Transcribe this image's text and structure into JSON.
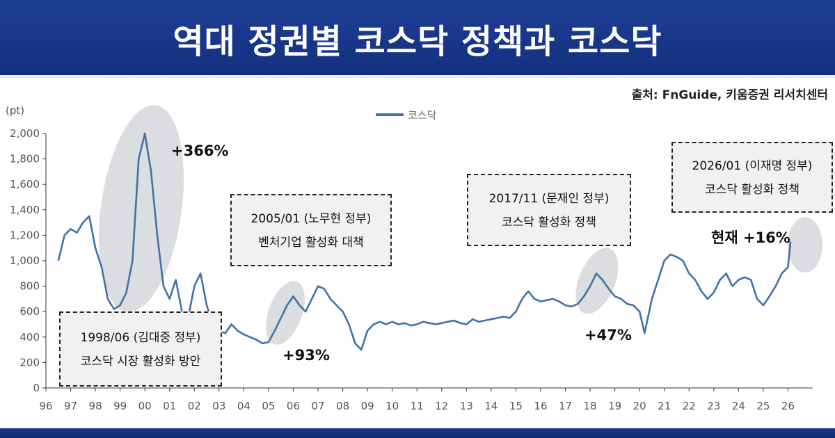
{
  "header": {
    "title": "역대 정권별 코스닥 정책과 코스닥"
  },
  "source": "출처: FnGuide, 키움증권 리서치센터",
  "chart_data": {
    "type": "line",
    "ylabel": "(pt)",
    "ylim": [
      0,
      2000
    ],
    "yticks": [
      0,
      200,
      400,
      600,
      800,
      1000,
      1200,
      1400,
      1600,
      1800,
      2000
    ],
    "ytick_labels": [
      "0",
      "200",
      "400",
      "600",
      "800",
      "1,000",
      "1,200",
      "1,400",
      "1,600",
      "1,800",
      "2,000"
    ],
    "xlim": [
      1996.0,
      2027.0
    ],
    "xtick_years": [
      1996,
      1997,
      1998,
      1999,
      2000,
      2001,
      2002,
      2003,
      2004,
      2005,
      2006,
      2007,
      2008,
      2009,
      2010,
      2011,
      2012,
      2013,
      2014,
      2015,
      2016,
      2017,
      2018,
      2019,
      2020,
      2021,
      2022,
      2023,
      2024,
      2025,
      2026
    ],
    "xtick_labels": [
      "96",
      "97",
      "98",
      "99",
      "00",
      "01",
      "02",
      "03",
      "04",
      "05",
      "06",
      "07",
      "08",
      "09",
      "10",
      "11",
      "12",
      "13",
      "14",
      "15",
      "16",
      "17",
      "18",
      "19",
      "20",
      "21",
      "22",
      "23",
      "24",
      "25",
      "26"
    ],
    "legend": "top-center",
    "grid": false,
    "series": [
      {
        "name": "코스닥",
        "color": "#3f72a8",
        "x": [
          1996.5,
          1996.75,
          1997.0,
          1997.25,
          1997.5,
          1997.75,
          1998.0,
          1998.25,
          1998.5,
          1998.75,
          1999.0,
          1999.25,
          1999.5,
          1999.75,
          2000.0,
          2000.25,
          2000.5,
          2000.75,
          2001.0,
          2001.25,
          2001.5,
          2001.75,
          2002.0,
          2002.25,
          2002.5,
          2002.75,
          2003.0,
          2003.25,
          2003.5,
          2003.75,
          2004.0,
          2004.25,
          2004.5,
          2004.75,
          2005.0,
          2005.25,
          2005.5,
          2005.75,
          2006.0,
          2006.25,
          2006.5,
          2006.75,
          2007.0,
          2007.25,
          2007.5,
          2007.75,
          2008.0,
          2008.25,
          2008.5,
          2008.75,
          2009.0,
          2009.25,
          2009.5,
          2009.75,
          2010.0,
          2010.25,
          2010.5,
          2010.75,
          2011.0,
          2011.25,
          2011.5,
          2011.75,
          2012.0,
          2012.25,
          2012.5,
          2012.75,
          2013.0,
          2013.25,
          2013.5,
          2013.75,
          2014.0,
          2014.25,
          2014.5,
          2014.75,
          2015.0,
          2015.25,
          2015.5,
          2015.75,
          2016.0,
          2016.25,
          2016.5,
          2016.75,
          2017.0,
          2017.25,
          2017.5,
          2017.75,
          2018.0,
          2018.25,
          2018.5,
          2018.75,
          2019.0,
          2019.25,
          2019.5,
          2019.75,
          2020.0,
          2020.2,
          2020.5,
          2020.75,
          2021.0,
          2021.25,
          2021.5,
          2021.75,
          2022.0,
          2022.25,
          2022.5,
          2022.75,
          2023.0,
          2023.25,
          2023.5,
          2023.75,
          2024.0,
          2024.25,
          2024.5,
          2024.75,
          2025.0,
          2025.25,
          2025.5,
          2025.75,
          2026.0,
          2026.1
        ],
        "y": [
          1000,
          1200,
          1250,
          1220,
          1300,
          1350,
          1100,
          950,
          700,
          620,
          650,
          750,
          1000,
          1800,
          2000,
          1700,
          1200,
          800,
          700,
          850,
          600,
          550,
          800,
          900,
          650,
          500,
          450,
          430,
          500,
          450,
          420,
          400,
          380,
          350,
          360,
          450,
          550,
          650,
          720,
          650,
          600,
          700,
          800,
          780,
          700,
          650,
          600,
          500,
          350,
          300,
          450,
          500,
          520,
          500,
          520,
          500,
          510,
          490,
          500,
          520,
          510,
          500,
          510,
          520,
          530,
          510,
          500,
          540,
          520,
          530,
          540,
          550,
          560,
          550,
          600,
          700,
          760,
          700,
          680,
          690,
          700,
          680,
          650,
          640,
          660,
          720,
          800,
          900,
          850,
          780,
          720,
          700,
          660,
          650,
          600,
          430,
          700,
          850,
          1000,
          1050,
          1030,
          1000,
          900,
          850,
          760,
          700,
          750,
          850,
          900,
          800,
          850,
          870,
          850,
          700,
          650,
          720,
          800,
          900,
          950,
          1150
        ]
      }
    ],
    "annotations": {
      "box_1998": [
        "1998/06 (김대중 정부)",
        "코스닥 시장 활성화 방안"
      ],
      "box_2005": [
        "2005/01 (노무현 정부)",
        "벤처기업 활성화 대책"
      ],
      "box_2017": [
        "2017/11 (문재인 정부)",
        "코스닥 활성화 정책"
      ],
      "box_2026": [
        "2026/01 (이재명 정부)",
        "코스닥 활성화 정책"
      ],
      "gain_1999": "+366%",
      "gain_2005": "+93%",
      "gain_2018": "+47%",
      "gain_now": "현재 +16%"
    }
  }
}
